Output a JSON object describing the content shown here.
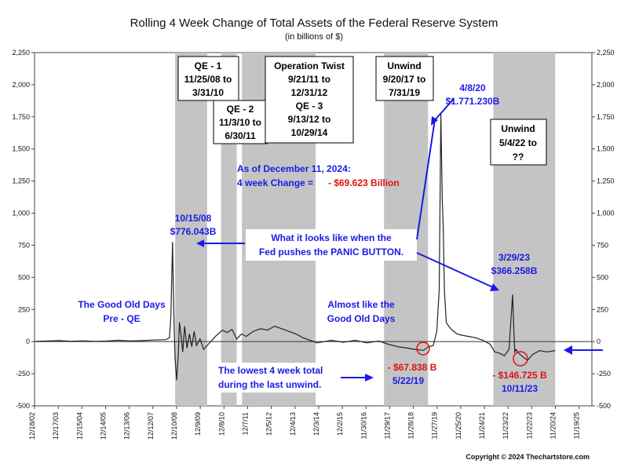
{
  "chart_data": {
    "type": "line",
    "title": "Rolling 4 Week Change of Total Assets of the Federal Reserve System",
    "subtitle": "(in billions of $)",
    "ylim": [
      -500,
      2250
    ],
    "yticks": [
      -500,
      -250,
      0,
      250,
      500,
      750,
      1000,
      1250,
      1500,
      1750,
      2000,
      2250
    ],
    "ytick_labels": [
      "-500",
      "-250",
      "0",
      "250",
      "500",
      "750",
      "1,000",
      "1,250",
      "1,500",
      "1,750",
      "2,000",
      "2,250"
    ],
    "xlim": [
      2002.96,
      2026.5
    ],
    "xticks": [
      2002.96,
      2003.96,
      2004.96,
      2005.96,
      2006.96,
      2007.96,
      2008.96,
      2009.96,
      2010.96,
      2011.96,
      2012.96,
      2013.96,
      2014.96,
      2015.96,
      2016.96,
      2017.96,
      2018.96,
      2019.96,
      2020.96,
      2021.96,
      2022.96,
      2023.96,
      2024.96,
      2025.96
    ],
    "xtick_labels": [
      "12/18/02",
      "12/17/03",
      "12/15/04",
      "12/14/05",
      "12/13/06",
      "12/12/07",
      "12/10/08",
      "12/9/09",
      "12/8/10",
      "12/7/11",
      "12/5/12",
      "12/4/13",
      "12/3/14",
      "12/2/15",
      "11/30/16",
      "11/29/17",
      "11/28/18",
      "11/27/19",
      "11/25/20",
      "11/24/21",
      "11/23/22",
      "11/22/23",
      "11/20/24",
      "11/19/25"
    ],
    "shaded_periods": [
      {
        "start": 2008.9,
        "end": 2010.25
      },
      {
        "start": 2010.84,
        "end": 2011.5
      },
      {
        "start": 2011.72,
        "end": 2014.83
      },
      {
        "start": 2017.72,
        "end": 2019.58
      },
      {
        "start": 2022.34,
        "end": 2024.95
      }
    ],
    "series": [
      {
        "x": [
          2003.0,
          2003.5,
          2004.0,
          2004.5,
          2005.0,
          2005.5,
          2006.0,
          2006.5,
          2007.0,
          2007.5,
          2008.0,
          2008.5,
          2008.66,
          2008.72,
          2008.79,
          2008.82,
          2008.86,
          2008.9,
          2008.96,
          2009.03,
          2009.08,
          2009.15,
          2009.22,
          2009.3,
          2009.4,
          2009.5,
          2009.6,
          2009.7,
          2009.8,
          2009.95,
          2010.1,
          2010.3,
          2010.6,
          2010.9,
          2011.1,
          2011.3,
          2011.5,
          2011.7,
          2011.9,
          2012.2,
          2012.5,
          2012.8,
          2013.1,
          2013.4,
          2013.7,
          2014.0,
          2014.3,
          2014.6,
          2014.9,
          2015.5,
          2016.0,
          2016.5,
          2017.0,
          2017.5,
          2017.9,
          2018.3,
          2018.7,
          2019.0,
          2019.39,
          2019.6,
          2019.8,
          2019.95,
          2020.05,
          2020.12,
          2020.18,
          2020.22,
          2020.27,
          2020.35,
          2020.45,
          2020.6,
          2020.8,
          2021.0,
          2021.3,
          2021.6,
          2021.9,
          2022.2,
          2022.4,
          2022.6,
          2022.8,
          2023.0,
          2023.15,
          2023.2,
          2023.24,
          2023.3,
          2023.4,
          2023.6,
          2023.78,
          2024.0,
          2024.3,
          2024.6,
          2024.95
        ],
        "values": [
          2,
          5,
          8,
          3,
          6,
          2,
          4,
          10,
          5,
          8,
          12,
          15,
          30,
          200,
          776.043,
          450,
          80,
          -150,
          -300,
          -100,
          150,
          50,
          -80,
          120,
          -50,
          60,
          -40,
          80,
          -30,
          20,
          -60,
          -20,
          40,
          90,
          70,
          95,
          20,
          60,
          40,
          80,
          100,
          90,
          120,
          100,
          80,
          60,
          30,
          10,
          -10,
          10,
          -5,
          10,
          -10,
          5,
          -20,
          -40,
          -50,
          -60,
          -67.838,
          -40,
          -30,
          80,
          400,
          1771.23,
          1100,
          900,
          400,
          150,
          120,
          90,
          60,
          50,
          40,
          30,
          10,
          -20,
          -80,
          -90,
          -110,
          -60,
          366.258,
          100,
          -80,
          -60,
          -90,
          -120,
          -146.725,
          -100,
          -70,
          -80,
          -69.623
        ]
      }
    ],
    "annotations": {
      "qe1": [
        "QE - 1",
        "11/25/08 to",
        "3/31/10"
      ],
      "qe2": [
        "QE - 2",
        "11/3/10 to",
        "6/30/11"
      ],
      "twist": [
        "Operation Twist",
        "9/21/11 to",
        "12/31/12",
        "QE - 3",
        "9/13/12 to",
        "10/29/14"
      ],
      "unwind1": [
        "Unwind",
        "9/20/17 to",
        "7/31/19"
      ],
      "unwind2": [
        "Unwind",
        "5/4/22 to",
        "??"
      ],
      "peak2020": [
        "4/8/20",
        "$1.771.230B"
      ],
      "asof": [
        "As of December 11, 2024:",
        "4 week Change =",
        "- $69.623 Billion"
      ],
      "peak2008": [
        "10/15/08",
        "$776.043B"
      ],
      "panic": [
        "What it looks like when the",
        "Fed pushes the PANIC BUTTON."
      ],
      "peak2023": [
        "3/29/23",
        "$366.258B"
      ],
      "goodold": [
        "The Good Old Days",
        "Pre - QE"
      ],
      "almost": [
        "Almost like the",
        "Good Old Days"
      ],
      "lowest": [
        "The lowest 4 week total",
        "during the last unwind."
      ],
      "low2019": [
        "- $67.838 B",
        "5/22/19"
      ],
      "low2023": [
        "- $146.725 B",
        "10/11/23"
      ]
    },
    "copyright": "Copyright © 2024 Thechartstore.com"
  }
}
